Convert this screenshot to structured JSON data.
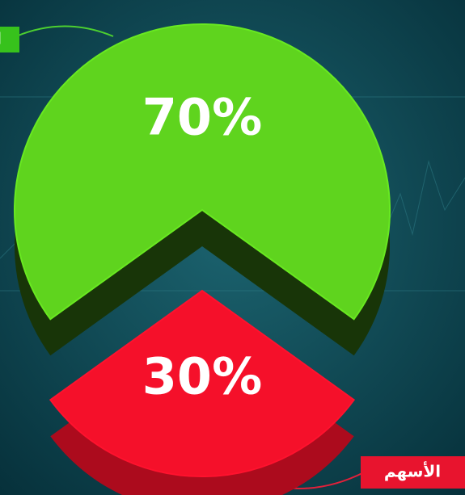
{
  "chart_data": {
    "type": "pie",
    "categories": [
      "ال",
      "الأسهم"
    ],
    "values": [
      70,
      30
    ],
    "value_labels": [
      "70%",
      "30%"
    ],
    "colors": [
      "#5fd41e",
      "#f5102a"
    ]
  }
}
